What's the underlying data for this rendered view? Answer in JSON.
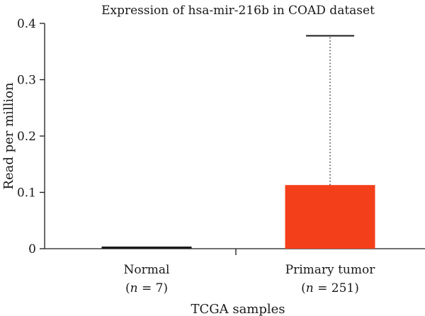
{
  "chart_data": {
    "type": "bar",
    "title": "Expression of hsa-mir-216b in COAD dataset",
    "xlabel": "TCGA samples",
    "ylabel": "Read per million",
    "ylim": [
      0,
      0.4
    ],
    "yticks": [
      0,
      0.1,
      0.2,
      0.3,
      0.4
    ],
    "ytick_labels": [
      "0",
      "0.1",
      "0.2",
      "0.3",
      "0.4"
    ],
    "categories": [
      {
        "name": "Normal",
        "n_label_prefix": "n",
        "n_label_suffix": " = 7)"
      },
      {
        "name": "Primary tumor",
        "n_label_prefix": "n",
        "n_label_suffix": " = 251)"
      }
    ],
    "values": [
      0.002,
      0.113
    ],
    "error_upper": [
      0.002,
      0.378
    ],
    "colors": [
      "#e8412c",
      "#f43f1b"
    ],
    "grid": false,
    "legend": "none"
  }
}
